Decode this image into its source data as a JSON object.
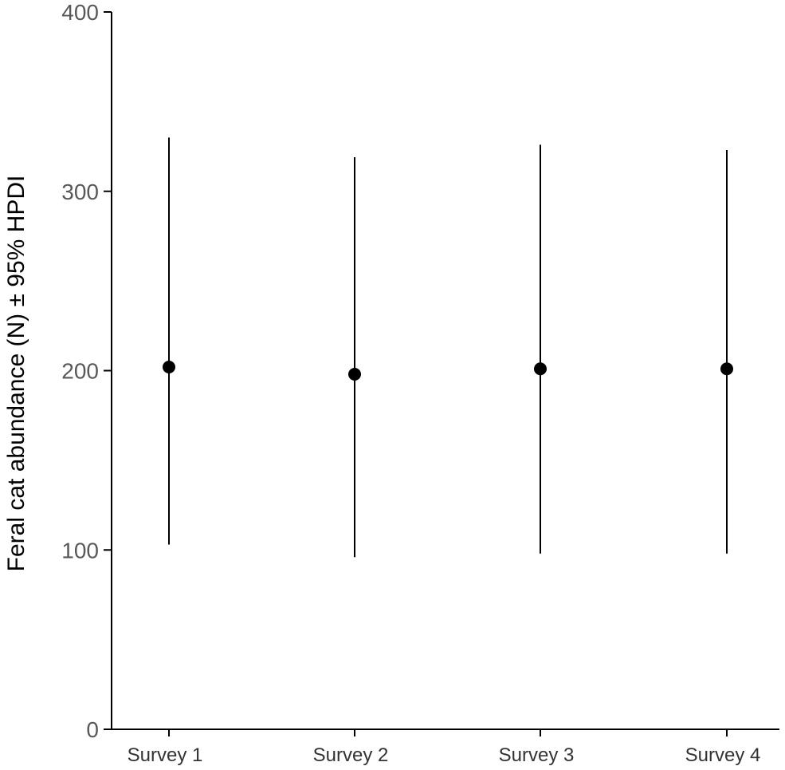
{
  "chart_data": {
    "type": "scatter",
    "title": "",
    "xlabel": "",
    "ylabel": "Feral cat abundance (N) ± 95% HPDI",
    "categories": [
      "Survey 1",
      "Survey 2",
      "Survey 3",
      "Survey 4"
    ],
    "values": [
      202,
      198,
      201,
      201
    ],
    "lower": [
      103,
      96,
      98,
      98
    ],
    "upper": [
      330,
      319,
      326,
      323
    ],
    "ylim": [
      0,
      400
    ],
    "yticks": [
      0,
      100,
      200,
      300,
      400
    ],
    "grid": false,
    "legend": "none",
    "colors": {
      "point": "#000000",
      "errorbar": "#000000",
      "axis": "#000000"
    }
  }
}
